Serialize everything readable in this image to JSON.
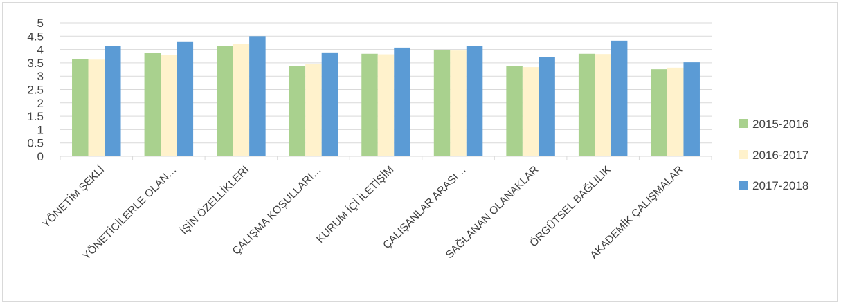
{
  "chart_data": {
    "type": "bar",
    "categories": [
      "YÖNETİM ŞEKLİ",
      "YÖNETİCİLERLE OLAN…",
      "İŞİN ÖZELLİKLERİ",
      "ÇALIŞMA KOŞULLARI…",
      "KURUM İÇİ İLETİŞİM",
      "ÇALIŞANLAR ARASI…",
      "SAĞLANAN OLANAKLAR",
      "ÖRGÜTSEL BAĞLILIK",
      "AKADEMİK ÇALIŞMALAR"
    ],
    "series": [
      {
        "name": "2015-2016",
        "color": "#a9d18e",
        "values": [
          3.65,
          3.88,
          4.12,
          3.38,
          3.84,
          3.99,
          3.38,
          3.84,
          3.26
        ]
      },
      {
        "name": "2016-2017",
        "color": "#fff2cc",
        "values": [
          3.62,
          3.8,
          4.2,
          3.46,
          3.82,
          3.96,
          3.34,
          3.83,
          3.32
        ]
      },
      {
        "name": "2017-2018",
        "color": "#5b9bd5",
        "values": [
          4.14,
          4.28,
          4.5,
          3.89,
          4.07,
          4.13,
          3.73,
          4.33,
          3.52
        ]
      }
    ],
    "yticks": [
      "0",
      "0.5",
      "1",
      "1.5",
      "2",
      "2.5",
      "3",
      "3.5",
      "4",
      "4.5",
      "5"
    ],
    "ylim": [
      0,
      5
    ],
    "grid": true,
    "legend": "right"
  }
}
